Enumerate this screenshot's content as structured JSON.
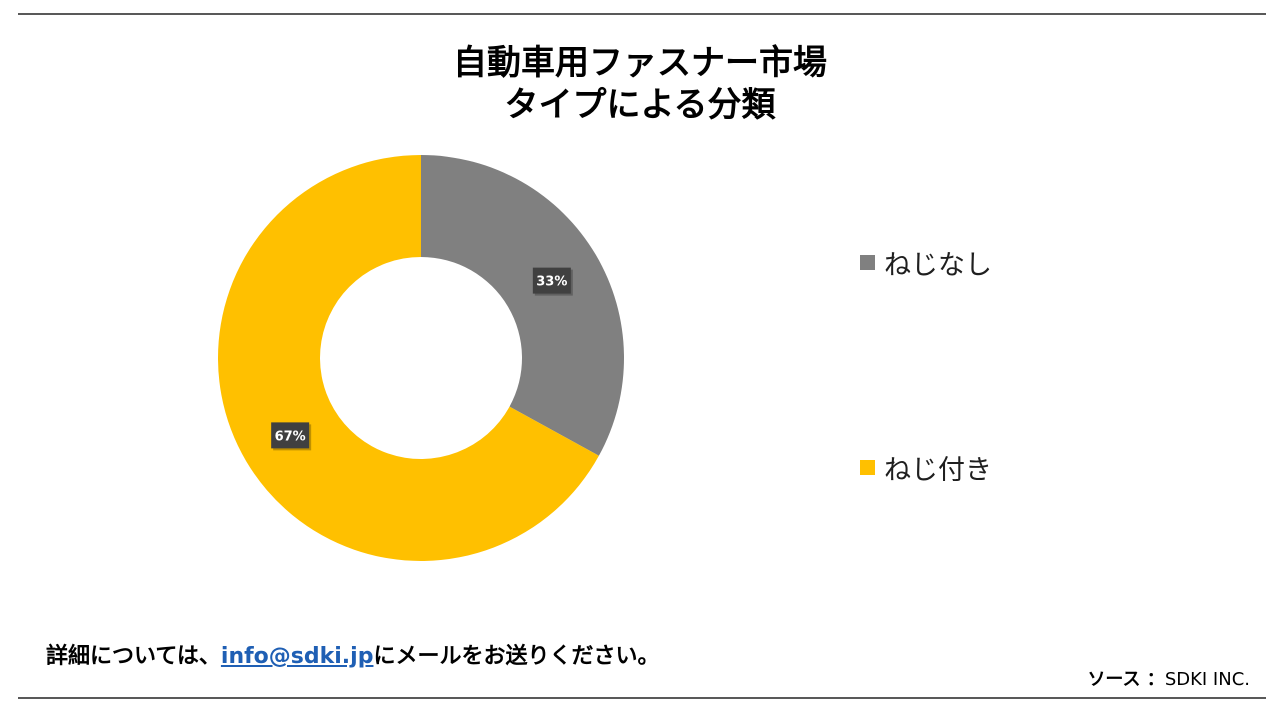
{
  "chart_data": {
    "type": "pie",
    "title_line1": "自動車用ファスナー市場",
    "title_line2": "タイプによる分類",
    "categories": [
      "ねじなし",
      "ねじ付き"
    ],
    "values": [
      33,
      67
    ],
    "value_labels": [
      "33%",
      "67%"
    ],
    "colors": [
      "#808080",
      "#FFC000"
    ],
    "legend_position": "right"
  },
  "footer": {
    "prefix": "詳細については、",
    "email": "info@sdki.jp",
    "suffix": "にメールをお送りください。",
    "source_label": "ソース ：",
    "source_value": "SDKI INC."
  }
}
